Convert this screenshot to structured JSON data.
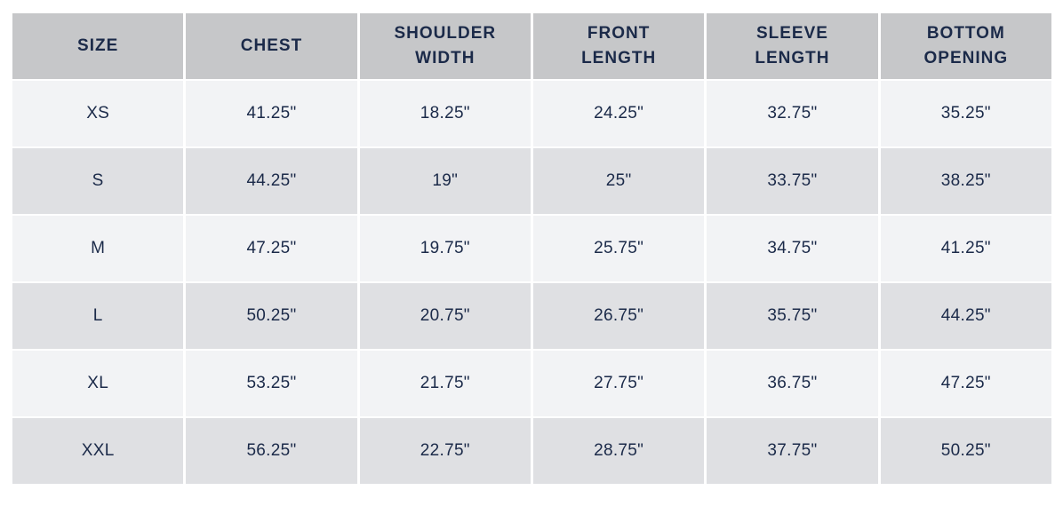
{
  "chart_data": {
    "type": "table",
    "columns": [
      "SIZE",
      "CHEST",
      "SHOULDER WIDTH",
      "FRONT LENGTH",
      "SLEEVE LENGTH",
      "BOTTOM OPENING"
    ],
    "rows": [
      {
        "size": "XS",
        "values": [
          "41.25\"",
          "18.25\"",
          "24.25\"",
          "32.75\"",
          "35.25\""
        ]
      },
      {
        "size": "S",
        "values": [
          "44.25\"",
          "19\"",
          "25\"",
          "33.75\"",
          "38.25\""
        ]
      },
      {
        "size": "M",
        "values": [
          "47.25\"",
          "19.75\"",
          "25.75\"",
          "34.75\"",
          "41.25\""
        ]
      },
      {
        "size": "L",
        "values": [
          "50.25\"",
          "20.75\"",
          "26.75\"",
          "35.75\"",
          "44.25\""
        ]
      },
      {
        "size": "XL",
        "values": [
          "53.25\"",
          "21.75\"",
          "27.75\"",
          "36.75\"",
          "47.25\""
        ]
      },
      {
        "size": "XXL",
        "values": [
          "56.25\"",
          "22.75\"",
          "28.75\"",
          "37.75\"",
          "50.25\""
        ]
      }
    ]
  },
  "colors": {
    "header_bg": "#c6c7c9",
    "row_light_bg": "#f2f3f5",
    "row_dark_bg": "#dfe0e3",
    "text": "#1b2a49",
    "gutter": "#ffffff"
  }
}
